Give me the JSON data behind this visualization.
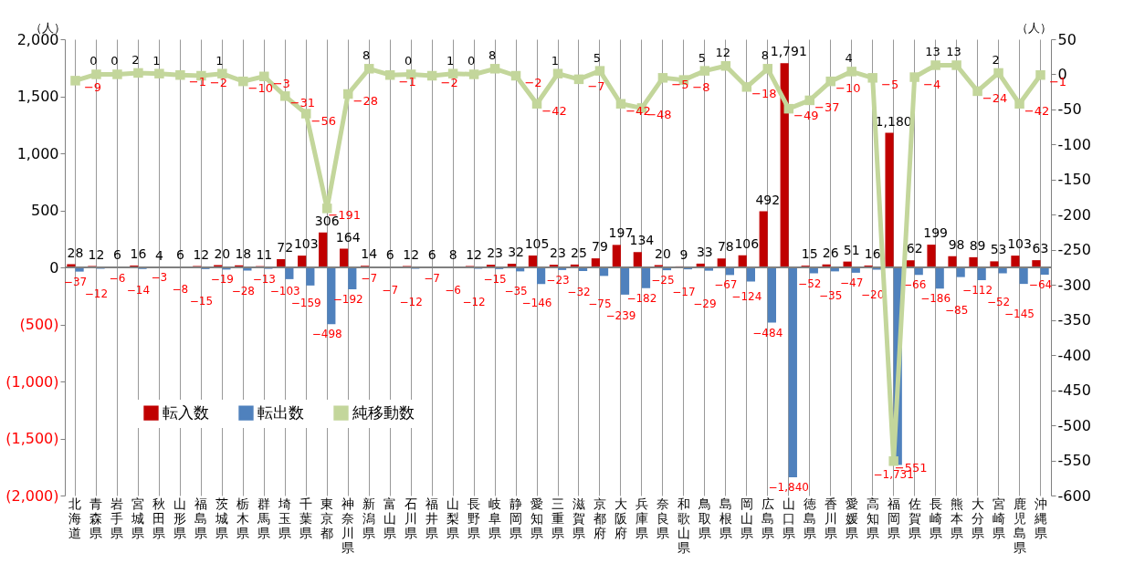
{
  "chart_data": {
    "type": "bar",
    "categories": [
      "北海道",
      "青森県",
      "岩手県",
      "宮城県",
      "秋田県",
      "山形県",
      "福島県",
      "茨城県",
      "栃木県",
      "群馬県",
      "埼玉県",
      "千葉県",
      "東京都",
      "神奈川県",
      "新潟県",
      "富山県",
      "石川県",
      "福井県",
      "山梨県",
      "長野県",
      "岐阜県",
      "静岡県",
      "愛知県",
      "三重県",
      "滋賀県",
      "京都府",
      "大阪府",
      "兵庫県",
      "奈良県",
      "和歌山県",
      "鳥取県",
      "島根県",
      "岡山県",
      "広島県",
      "山口県",
      "徳島県",
      "香川県",
      "愛媛県",
      "高知県",
      "福岡県",
      "佐賀県",
      "長崎県",
      "熊本県",
      "大分県",
      "宮崎県",
      "鹿児島県",
      "沖縄県"
    ],
    "series": [
      {
        "name": "転入数",
        "color": "#c00000",
        "values": [
          28,
          12,
          6,
          16,
          4,
          6,
          12,
          20,
          18,
          11,
          72,
          103,
          306,
          164,
          14,
          6,
          12,
          6,
          8,
          12,
          23,
          32,
          105,
          23,
          25,
          79,
          197,
          134,
          20,
          9,
          33,
          78,
          106,
          492,
          1791,
          15,
          26,
          51,
          16,
          1180,
          62,
          199,
          98,
          89,
          53,
          103,
          63
        ],
        "value_labels": [
          "28",
          "12",
          "6",
          "16",
          "4",
          "6",
          "12",
          "20",
          "18",
          "11",
          "72",
          "103",
          "306",
          "164",
          "14",
          "6",
          "12",
          "6",
          "8",
          "12",
          "23",
          "32",
          "105",
          "23",
          "25",
          "79",
          "197",
          "134",
          "20",
          "9",
          "33",
          "78",
          "106",
          "492",
          "1,791",
          "15",
          "26",
          "51",
          "16",
          "1,180",
          "62",
          "199",
          "98",
          "89",
          "53",
          "103",
          "63"
        ]
      },
      {
        "name": "転出数",
        "color": "#4f81bd",
        "values": [
          -37,
          -12,
          -6,
          -14,
          -3,
          -8,
          -15,
          -19,
          -28,
          -13,
          -103,
          -159,
          -498,
          -192,
          -7,
          -7,
          -12,
          -7,
          -6,
          -12,
          -15,
          -35,
          -146,
          -23,
          -32,
          -75,
          -239,
          -182,
          -25,
          -17,
          -29,
          -67,
          -124,
          -484,
          -1840,
          -52,
          -35,
          -47,
          -20,
          -1731,
          -66,
          -186,
          -85,
          -112,
          -52,
          -145,
          -64
        ],
        "value_labels": [
          "−37",
          "−12",
          "−6",
          "−14",
          "−3",
          "−8",
          "−15",
          "−19",
          "−28",
          "−13",
          "−103",
          "−159",
          "−498",
          "−192",
          "−7",
          "−7",
          "−12",
          "−7",
          "−6",
          "−12",
          "−15",
          "−35",
          "−146",
          "−23",
          "−32",
          "−75",
          "−239",
          "−182",
          "−25",
          "−17",
          "−29",
          "−67",
          "−124",
          "−484",
          "−1,840",
          "−52",
          "−35",
          "−47",
          "−20",
          "−1,731",
          "−66",
          "−186",
          "−85",
          "−112",
          "−52",
          "−145",
          "−64"
        ]
      },
      {
        "name": "純移動数",
        "color": "#c3d69b",
        "type": "line",
        "axis": "y2",
        "marker": "square",
        "values": [
          -9,
          0,
          0,
          2,
          1,
          -1,
          -2,
          1,
          -10,
          -3,
          -31,
          -56,
          -191,
          -28,
          8,
          -1,
          0,
          -2,
          1,
          0,
          8,
          -2,
          -42,
          1,
          -7,
          5,
          -42,
          -48,
          -5,
          -8,
          5,
          12,
          -18,
          8,
          -49,
          -37,
          -10,
          4,
          -5,
          -551,
          -4,
          13,
          13,
          -24,
          2,
          -42,
          -1
        ],
        "value_labels": [
          "−9",
          "0",
          "0",
          "2",
          "1",
          "−1",
          "−2",
          "1",
          "−10",
          "−3",
          "−31",
          "−56",
          "−191",
          "−28",
          "8",
          "−1",
          "0",
          "−2",
          "1",
          "0",
          "8",
          "−2",
          "−42",
          "1",
          "−7",
          "5",
          "−42",
          "−48",
          "−5",
          "−8",
          "5",
          "12",
          "−18",
          "8",
          "−49",
          "−37",
          "−10",
          "4",
          "−5",
          "−551",
          "−4",
          "13",
          "13",
          "−24",
          "2",
          "−42",
          "−1"
        ]
      }
    ],
    "ylabel": "（人）",
    "y2label": "（人）",
    "ylim": [
      -2000,
      2000
    ],
    "yticks": [
      {
        "value": 2000,
        "label": "2,000"
      },
      {
        "value": 1500,
        "label": "1,500"
      },
      {
        "value": 1000,
        "label": "1,000"
      },
      500,
      0,
      {
        "value": -500,
        "label": "(500)"
      },
      {
        "value": -1000,
        "label": "(1,000)"
      },
      {
        "value": -1500,
        "label": "(1,500)"
      },
      {
        "value": -2000,
        "label": "(2,000)"
      }
    ],
    "y2lim": [
      -600,
      50
    ],
    "y2ticks": [
      50,
      0,
      -50,
      -100,
      -150,
      -200,
      -250,
      -300,
      -350,
      -400,
      -450,
      -500,
      -550,
      -600
    ],
    "ref_lines": [
      {
        "axis": "y",
        "value": 0,
        "color": "#808080"
      }
    ],
    "grid": "x",
    "legend": "left"
  }
}
